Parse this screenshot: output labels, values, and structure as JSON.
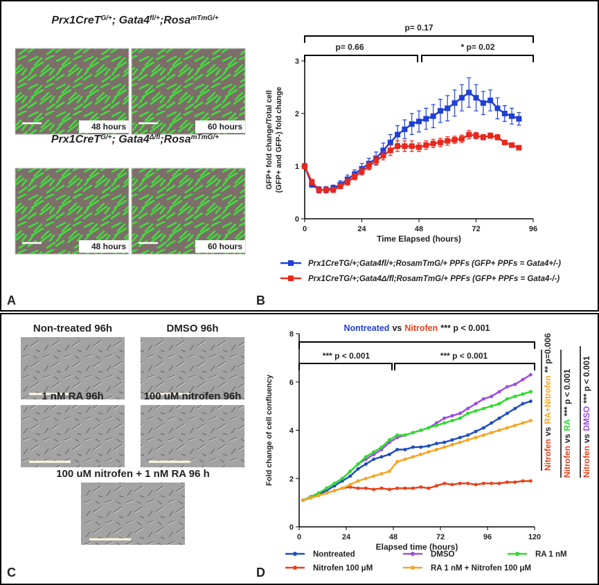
{
  "panels": {
    "A": {
      "letter": "A",
      "rows": [
        {
          "title": [
            "Prx1CreT",
            "G/+",
            "; Gata4",
            "fl/+",
            ";Rosa",
            "mTmG/+"
          ],
          "labels": [
            "48 hours",
            "60 hours"
          ]
        },
        {
          "title": [
            "Prx1CreT",
            "G/+",
            "; Gata4",
            "Δ/fl",
            ";Rosa",
            "mTmG/+"
          ],
          "labels": [
            "48 hours",
            "60 hours"
          ]
        }
      ]
    },
    "B": {
      "letter": "B"
    },
    "C": {
      "letter": "C",
      "labels": [
        "Non-treated 96h",
        "DMSO 96h",
        "1 nM RA 96h",
        "100 uM nitrofen 96h",
        "100 uM nitrofen + 1 nM RA 96 h"
      ]
    },
    "D": {
      "letter": "D"
    }
  },
  "chart_data": [
    {
      "type": "line",
      "marker": "square",
      "ylabel": [
        "GFP+ fold change/Total cell",
        "(GFP+ and GFP-) fold change"
      ],
      "xlabel": "Time Elapsed (hours)",
      "xlim": [
        0,
        96
      ],
      "xticks": [
        0,
        24,
        48,
        72,
        96
      ],
      "ylim": [
        0,
        3
      ],
      "yticks": [
        0,
        1,
        2,
        3
      ],
      "annotations": [
        "p= 0.17",
        "p= 0.66",
        "* p= 0.02"
      ],
      "x": [
        0,
        3,
        6,
        9,
        12,
        15,
        18,
        21,
        24,
        27,
        30,
        33,
        36,
        39,
        42,
        45,
        48,
        51,
        54,
        57,
        60,
        63,
        66,
        69,
        72,
        75,
        78,
        81,
        84,
        87,
        90
      ],
      "series": [
        {
          "name": "Prx1CreTG/+;Gata4fl/+;RosamTmG/+ PPFs (GFP+ PPFs = Gata4+/-)",
          "color": "#1f3fd6",
          "values": [
            1.0,
            0.65,
            0.55,
            0.55,
            0.58,
            0.65,
            0.75,
            0.85,
            0.95,
            1.05,
            1.15,
            1.3,
            1.45,
            1.6,
            1.7,
            1.8,
            1.85,
            1.9,
            1.95,
            2.05,
            2.1,
            2.2,
            2.3,
            2.4,
            2.3,
            2.2,
            2.25,
            2.1,
            2.0,
            1.95,
            1.9
          ],
          "errors": [
            0.05,
            0.05,
            0.06,
            0.06,
            0.06,
            0.07,
            0.08,
            0.08,
            0.1,
            0.1,
            0.12,
            0.14,
            0.15,
            0.17,
            0.18,
            0.2,
            0.2,
            0.2,
            0.22,
            0.22,
            0.24,
            0.25,
            0.25,
            0.28,
            0.25,
            0.22,
            0.2,
            0.2,
            0.15,
            0.15,
            0.12
          ]
        },
        {
          "name": "Prx1CreTG/+;Gata4Δ/fl;RosamTmG/+ PPFs (GFP+ PPFs = Gata4-/-)",
          "color": "#e8281c",
          "values": [
            1.0,
            0.7,
            0.55,
            0.55,
            0.55,
            0.62,
            0.7,
            0.8,
            0.9,
            1.0,
            1.1,
            1.2,
            1.3,
            1.38,
            1.38,
            1.38,
            1.36,
            1.4,
            1.43,
            1.45,
            1.48,
            1.5,
            1.52,
            1.6,
            1.58,
            1.55,
            1.58,
            1.55,
            1.45,
            1.4,
            1.35
          ],
          "errors": [
            0.04,
            0.05,
            0.05,
            0.05,
            0.05,
            0.05,
            0.06,
            0.06,
            0.07,
            0.07,
            0.08,
            0.08,
            0.1,
            0.1,
            0.1,
            0.1,
            0.08,
            0.08,
            0.08,
            0.08,
            0.08,
            0.07,
            0.07,
            0.08,
            0.06,
            0.05,
            0.05,
            0.05,
            0.04,
            0.04,
            0.04
          ]
        }
      ]
    },
    {
      "type": "line",
      "marker": "circle",
      "ylabel": [
        "Fold change of cell confluency"
      ],
      "xlabel": "Elapsed time (hours)",
      "xlim": [
        0,
        120
      ],
      "xticks": [
        0,
        24,
        48,
        72,
        96,
        120
      ],
      "ylim": [
        0,
        8
      ],
      "yticks": [
        0,
        2,
        4,
        6,
        8
      ],
      "annotations": [
        "*** p < 0.001",
        "*** p < 0.001"
      ],
      "headline": {
        "parts": [
          "Nontreated",
          "vs",
          "Nitrofen",
          "*** p < 0.001"
        ],
        "colors": [
          "#1f3fd6",
          "#222222",
          "#e8401c",
          "#222222"
        ]
      },
      "comparisons": [
        {
          "parts": [
            "Nitrofen",
            "vs",
            "RA+Nitrofen",
            "** p=0.006"
          ],
          "colors": [
            "#e8401c",
            "#222222",
            "#f5a623",
            "#222222"
          ]
        },
        {
          "parts": [
            "Nitrofen",
            "vs",
            "RA",
            "*** p < 0.001"
          ],
          "colors": [
            "#e8401c",
            "#222222",
            "#2edb2e",
            "#222222"
          ]
        },
        {
          "parts": [
            "Nitrofen",
            "vs",
            "DMSO",
            "*** p < 0.001"
          ],
          "colors": [
            "#e8401c",
            "#222222",
            "#9b4de0",
            "#222222"
          ]
        }
      ],
      "x": [
        2,
        6,
        10,
        14,
        18,
        22,
        26,
        30,
        34,
        38,
        42,
        46,
        50,
        54,
        58,
        62,
        66,
        70,
        74,
        78,
        82,
        86,
        90,
        94,
        98,
        102,
        106,
        110,
        114,
        118
      ],
      "series": [
        {
          "name": "Nontreated",
          "color": "#1f4fbf",
          "values": [
            1.1,
            1.2,
            1.35,
            1.5,
            1.7,
            1.9,
            2.1,
            2.4,
            2.6,
            2.8,
            2.9,
            3.0,
            3.2,
            3.2,
            3.3,
            3.3,
            3.35,
            3.45,
            3.5,
            3.6,
            3.7,
            3.8,
            3.95,
            4.1,
            4.3,
            4.5,
            4.7,
            4.9,
            5.1,
            5.2
          ]
        },
        {
          "name": "DMSO",
          "color": "#9b4de0",
          "values": [
            1.1,
            1.25,
            1.4,
            1.6,
            1.8,
            2.0,
            2.3,
            2.6,
            2.8,
            3.0,
            3.2,
            3.5,
            3.7,
            3.8,
            3.9,
            4.0,
            4.1,
            4.3,
            4.5,
            4.6,
            4.7,
            4.9,
            5.1,
            5.3,
            5.4,
            5.6,
            5.8,
            5.9,
            6.1,
            6.3
          ]
        },
        {
          "name": "RA 1 nM",
          "color": "#2edb2e",
          "values": [
            1.1,
            1.25,
            1.4,
            1.6,
            1.8,
            2.0,
            2.3,
            2.6,
            2.9,
            3.1,
            3.3,
            3.6,
            3.8,
            3.8,
            3.9,
            4.0,
            4.1,
            4.2,
            4.3,
            4.4,
            4.5,
            4.7,
            4.8,
            4.9,
            5.0,
            5.1,
            5.3,
            5.4,
            5.5,
            5.6
          ]
        },
        {
          "name": "Nitrofen 100 μM",
          "color": "#e8401c",
          "values": [
            1.1,
            1.2,
            1.3,
            1.4,
            1.5,
            1.6,
            1.65,
            1.6,
            1.6,
            1.55,
            1.6,
            1.55,
            1.6,
            1.6,
            1.6,
            1.65,
            1.6,
            1.7,
            1.8,
            1.75,
            1.8,
            1.8,
            1.75,
            1.8,
            1.8,
            1.8,
            1.85,
            1.85,
            1.9,
            1.9
          ]
        },
        {
          "name": "RA 1 nM + Nitrofen 100 μM",
          "color": "#f5a623",
          "values": [
            1.1,
            1.2,
            1.3,
            1.4,
            1.5,
            1.6,
            1.75,
            1.9,
            2.0,
            2.1,
            2.2,
            2.3,
            2.7,
            2.8,
            2.9,
            3.0,
            3.1,
            3.2,
            3.3,
            3.4,
            3.5,
            3.6,
            3.7,
            3.8,
            3.9,
            4.0,
            4.1,
            4.2,
            4.3,
            4.4
          ]
        }
      ]
    }
  ]
}
